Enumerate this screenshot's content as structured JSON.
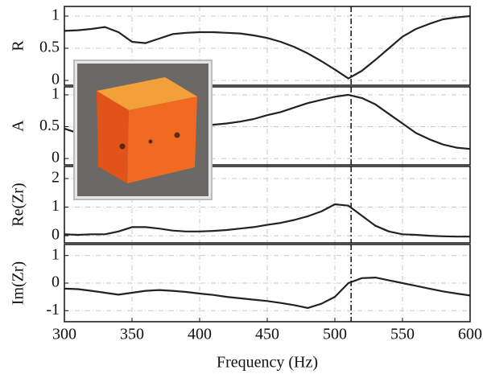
{
  "chart_data": [
    {
      "type": "line",
      "ylabel": "R",
      "xlim": [
        300,
        600
      ],
      "xticks": [
        300,
        350,
        400,
        450,
        500,
        550,
        600
      ],
      "ylim": [
        -0.075,
        1.15
      ],
      "yticks": [
        0,
        0.5,
        1
      ],
      "grid": true,
      "vlines": [
        512
      ],
      "x": [
        300,
        310,
        320,
        330,
        340,
        350,
        360,
        370,
        380,
        390,
        400,
        410,
        420,
        430,
        440,
        450,
        460,
        470,
        480,
        490,
        500,
        510,
        520,
        530,
        540,
        550,
        560,
        570,
        580,
        590,
        600
      ],
      "series": [
        {
          "color": "#222222",
          "values": [
            0.77,
            0.78,
            0.8,
            0.83,
            0.75,
            0.6,
            0.58,
            0.65,
            0.72,
            0.74,
            0.75,
            0.75,
            0.74,
            0.73,
            0.7,
            0.66,
            0.6,
            0.52,
            0.42,
            0.3,
            0.17,
            0.03,
            0.15,
            0.32,
            0.5,
            0.68,
            0.8,
            0.88,
            0.95,
            0.98,
            1.0
          ]
        }
      ]
    },
    {
      "type": "line",
      "ylabel": "A",
      "xlim": [
        300,
        600
      ],
      "xticks": [
        300,
        350,
        400,
        450,
        500,
        550,
        600
      ],
      "ylim": [
        -0.1,
        1.125
      ],
      "yticks": [
        0,
        0.5,
        1
      ],
      "grid": true,
      "vlines": [
        512
      ],
      "x": [
        300,
        310,
        320,
        330,
        340,
        350,
        360,
        370,
        380,
        390,
        400,
        410,
        420,
        430,
        440,
        450,
        460,
        470,
        480,
        490,
        500,
        510,
        520,
        530,
        540,
        550,
        560,
        570,
        580,
        590,
        600
      ],
      "series": [
        {
          "color": "#222222",
          "values": [
            0.47,
            0.4,
            0.35,
            0.3,
            0.4,
            0.55,
            0.58,
            0.55,
            0.5,
            0.48,
            0.5,
            0.53,
            0.55,
            0.58,
            0.62,
            0.68,
            0.73,
            0.8,
            0.87,
            0.92,
            0.97,
            1.0,
            0.95,
            0.85,
            0.7,
            0.55,
            0.4,
            0.3,
            0.22,
            0.17,
            0.15
          ]
        }
      ]
    },
    {
      "type": "line",
      "ylabel": "Re(Zr)",
      "xlim": [
        300,
        600
      ],
      "xticks": [
        300,
        350,
        400,
        450,
        500,
        550,
        600
      ],
      "ylim": [
        -0.25,
        2.42
      ],
      "yticks": [
        0,
        1,
        2
      ],
      "grid": true,
      "vlines": [
        512
      ],
      "x": [
        300,
        310,
        320,
        330,
        340,
        350,
        360,
        370,
        380,
        390,
        400,
        410,
        420,
        430,
        440,
        450,
        460,
        470,
        480,
        490,
        500,
        510,
        520,
        530,
        540,
        550,
        560,
        570,
        580,
        590,
        600
      ],
      "series": [
        {
          "color": "#222222",
          "values": [
            0.05,
            0.03,
            0.05,
            0.05,
            0.15,
            0.3,
            0.3,
            0.25,
            0.18,
            0.15,
            0.15,
            0.17,
            0.2,
            0.25,
            0.3,
            0.38,
            0.45,
            0.55,
            0.68,
            0.85,
            1.1,
            1.05,
            0.7,
            0.35,
            0.15,
            0.05,
            0.03,
            0.0,
            -0.02,
            -0.03,
            -0.03
          ]
        }
      ]
    },
    {
      "type": "line",
      "ylabel": "Im(Zr)",
      "xlabel": "Frequency (Hz)",
      "xlim": [
        300,
        600
      ],
      "xticks": [
        300,
        350,
        400,
        450,
        500,
        550,
        600
      ],
      "ylim": [
        -1.4,
        1.4
      ],
      "yticks": [
        -1,
        0,
        1
      ],
      "grid": true,
      "vlines": [
        512
      ],
      "x": [
        300,
        310,
        320,
        330,
        340,
        350,
        360,
        370,
        380,
        390,
        400,
        410,
        420,
        430,
        440,
        450,
        460,
        470,
        480,
        490,
        500,
        510,
        520,
        530,
        540,
        550,
        560,
        570,
        580,
        590,
        600
      ],
      "series": [
        {
          "color": "#222222",
          "values": [
            -0.2,
            -0.22,
            -0.28,
            -0.35,
            -0.42,
            -0.35,
            -0.28,
            -0.25,
            -0.28,
            -0.32,
            -0.38,
            -0.43,
            -0.5,
            -0.55,
            -0.6,
            -0.65,
            -0.72,
            -0.8,
            -0.9,
            -0.75,
            -0.5,
            0.0,
            0.18,
            0.2,
            0.1,
            0.0,
            -0.1,
            -0.2,
            -0.3,
            -0.38,
            -0.45
          ]
        }
      ]
    }
  ]
}
